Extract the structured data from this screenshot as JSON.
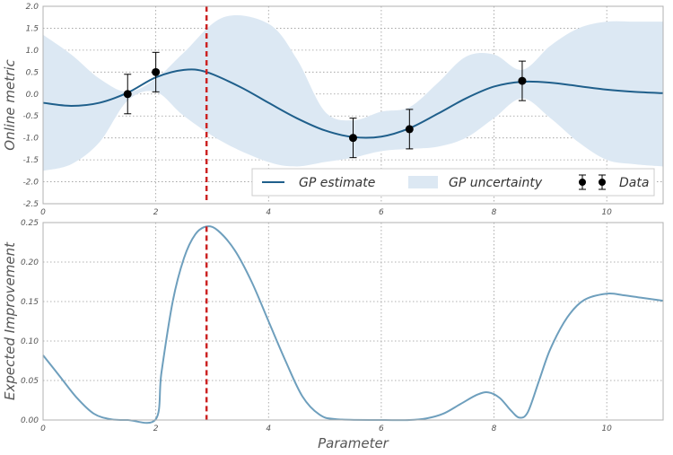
{
  "chart_data": [
    {
      "type": "line",
      "panel": "top",
      "title": "",
      "xlabel": "",
      "ylabel": "Online metric",
      "xlim": [
        0,
        11
      ],
      "ylim": [
        -2.5,
        2.0
      ],
      "x_ticks": [
        "0",
        "2",
        "4",
        "6",
        "8",
        "10"
      ],
      "x_tick_values": [
        0,
        2,
        4,
        6,
        8,
        10
      ],
      "y_ticks": [
        "2.0",
        "1.5",
        "1.0",
        "0.5",
        "0.0",
        "-0.5",
        "-1.0",
        "-1.5",
        "-2.0",
        "-2.5"
      ],
      "y_tick_values": [
        2.0,
        1.5,
        1.0,
        0.5,
        0.0,
        -0.5,
        -1.0,
        -1.5,
        -2.0,
        -2.5
      ],
      "grid": true,
      "legend_position": "bottom-right",
      "legend": [
        "GP estimate",
        "GP uncertainty",
        "Data"
      ],
      "colors": {
        "estimate": "#1f5f8b",
        "uncertainty": "#dce8f3",
        "data": "#000000",
        "marker_line": "#cc2222"
      },
      "vline_x": 2.9,
      "estimate": {
        "name": "GP estimate",
        "x": [
          0,
          0.5,
          1,
          1.5,
          2,
          2.5,
          2.9,
          3.5,
          4,
          4.5,
          5,
          5.5,
          6,
          6.5,
          7,
          7.5,
          8,
          8.5,
          9,
          9.5,
          10,
          10.5,
          11
        ],
        "y": [
          -0.2,
          -0.27,
          -0.2,
          0.03,
          0.38,
          0.55,
          0.5,
          0.16,
          -0.2,
          -0.55,
          -0.83,
          -0.98,
          -0.97,
          -0.78,
          -0.45,
          -0.1,
          0.17,
          0.28,
          0.26,
          0.18,
          0.1,
          0.05,
          0.02
        ]
      },
      "uncertainty": {
        "name": "GP uncertainty",
        "x": [
          0,
          0.5,
          1,
          1.5,
          2,
          2.5,
          3.2,
          4,
          4.5,
          5,
          5.5,
          6,
          6.5,
          7,
          7.5,
          8,
          8.5,
          9,
          9.5,
          10,
          10.5,
          11
        ],
        "upper": [
          1.35,
          0.9,
          0.35,
          0.05,
          0.35,
          0.95,
          1.75,
          1.6,
          0.8,
          -0.4,
          -0.6,
          -0.4,
          -0.3,
          0.25,
          0.85,
          0.9,
          0.55,
          1.1,
          1.5,
          1.65,
          1.65,
          1.65
        ],
        "lower": [
          -1.75,
          -1.6,
          -1.1,
          -0.15,
          0.05,
          -0.5,
          -1.1,
          -1.55,
          -1.65,
          -1.55,
          -1.45,
          -1.3,
          -1.25,
          -1.2,
          -1.0,
          -0.55,
          -0.1,
          -0.55,
          -1.1,
          -1.5,
          -1.6,
          -1.65
        ]
      },
      "data_points": {
        "name": "Data",
        "x": [
          1.5,
          2.0,
          5.5,
          6.5,
          8.5
        ],
        "y": [
          0.0,
          0.5,
          -1.0,
          -0.8,
          0.3
        ],
        "error": [
          0.45,
          0.45,
          0.45,
          0.45,
          0.45
        ]
      }
    },
    {
      "type": "line",
      "panel": "bottom",
      "title": "",
      "xlabel": "Parameter",
      "ylabel": "Expected Improvement",
      "xlim": [
        0,
        11
      ],
      "ylim": [
        0,
        0.25
      ],
      "x_ticks": [
        "0",
        "2",
        "4",
        "6",
        "8",
        "10"
      ],
      "x_tick_values": [
        0,
        2,
        4,
        6,
        8,
        10
      ],
      "y_ticks": [
        "0.25",
        "0.20",
        "0.15",
        "0.10",
        "0.05",
        "0.00"
      ],
      "y_tick_values": [
        0.25,
        0.2,
        0.15,
        0.1,
        0.05,
        0.0
      ],
      "grid": true,
      "colors": {
        "line": "#6e9fbd",
        "marker_line": "#cc2222"
      },
      "vline_x": 2.9,
      "series": [
        {
          "name": "Expected Improvement",
          "x": [
            0,
            0.3,
            0.6,
            0.9,
            1.2,
            1.5,
            2.0,
            2.1,
            2.3,
            2.5,
            2.7,
            2.9,
            3.1,
            3.4,
            3.7,
            4.0,
            4.3,
            4.6,
            4.9,
            5.2,
            6.0,
            6.5,
            6.8,
            7.1,
            7.4,
            7.7,
            7.9,
            8.1,
            8.3,
            8.45,
            8.6,
            8.8,
            9.0,
            9.3,
            9.6,
            10.0,
            10.3,
            10.6,
            11.0
          ],
          "y": [
            0.082,
            0.055,
            0.028,
            0.008,
            0.001,
            0.0,
            0.001,
            0.06,
            0.15,
            0.205,
            0.235,
            0.245,
            0.24,
            0.215,
            0.175,
            0.125,
            0.075,
            0.03,
            0.007,
            0.001,
            0.0,
            0.0,
            0.002,
            0.008,
            0.02,
            0.032,
            0.035,
            0.028,
            0.012,
            0.003,
            0.01,
            0.05,
            0.09,
            0.13,
            0.152,
            0.16,
            0.158,
            0.155,
            0.151
          ]
        }
      ]
    }
  ]
}
